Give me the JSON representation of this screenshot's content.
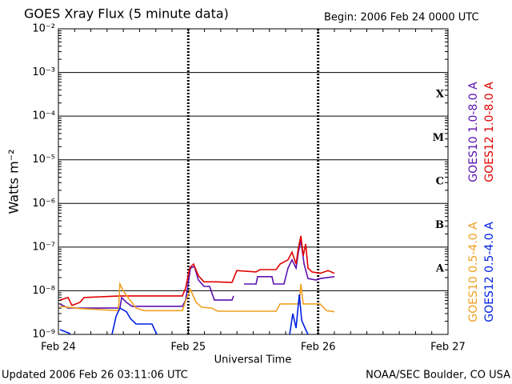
{
  "chart_data": {
    "type": "line",
    "title": "GOES Xray Flux (5 minute data)",
    "begin": "Begin:  2006 Feb 24 0000 UTC",
    "ylabel": "Watts m⁻²",
    "xlabel": "Universal Time",
    "updated": "Updated 2006 Feb 26 03:11:06 UTC",
    "source": "NOAA/SEC Boulder, CO USA",
    "log_scale": true,
    "grid": true,
    "ylim": [
      1e-09,
      0.01
    ],
    "yticks": [
      {
        "value": 1e-09,
        "label": "10⁻⁹"
      },
      {
        "value": 1e-08,
        "label": "10⁻⁸"
      },
      {
        "value": 1e-07,
        "label": "10⁻⁷"
      },
      {
        "value": 1e-06,
        "label": "10⁻⁶"
      },
      {
        "value": 1e-05,
        "label": "10⁻⁵"
      },
      {
        "value": 0.0001,
        "label": "10⁻⁴"
      },
      {
        "value": 0.001,
        "label": "10⁻³"
      },
      {
        "value": 0.01,
        "label": "10⁻²"
      }
    ],
    "xlim": [
      0,
      3
    ],
    "xticks": [
      {
        "value": 0,
        "label": "Feb 24"
      },
      {
        "value": 1,
        "label": "Feb 25"
      },
      {
        "value": 2,
        "label": "Feb 26"
      },
      {
        "value": 3,
        "label": "Feb 27"
      }
    ],
    "flare_classes": [
      "A",
      "B",
      "C",
      "M",
      "X"
    ],
    "series": [
      {
        "name": "GOES10 1.0-8.0 A",
        "color": "#5a10b0",
        "x": [
          0.012,
          0.074,
          0.474,
          0.487,
          0.524,
          0.567,
          0.955,
          0.98,
          1.017,
          1.047,
          1.078,
          1.121,
          1.164,
          1.201,
          1.337,
          1.349,
          null,
          1.429,
          1.522,
          1.534,
          1.645,
          1.657,
          1.737,
          1.768,
          1.799,
          1.83,
          1.848,
          1.867,
          1.892,
          1.922,
          1.984,
          2.015,
          2.126
        ],
        "values": [
          5e-09,
          4e-09,
          4e-09,
          7e-09,
          5.4e-09,
          4.4e-09,
          4.4e-09,
          6.1e-09,
          3.3e-08,
          3.6e-08,
          1.76e-08,
          1.26e-08,
          1.26e-08,
          6.1e-09,
          6.1e-09,
          7.6e-09,
          null,
          1.43e-08,
          1.43e-08,
          2.1e-08,
          2.1e-08,
          1.43e-08,
          1.43e-08,
          3.3e-08,
          5.1e-08,
          3.3e-08,
          7.7e-08,
          1.45e-07,
          4.1e-08,
          1.9e-08,
          1.76e-08,
          1.9e-08,
          2.1e-08
        ]
      },
      {
        "name": "GOES12 1.0-8.0 A",
        "color": "#e00000",
        "x": [
          0.012,
          0.074,
          0.105,
          0.166,
          0.197,
          0.474,
          0.955,
          0.98,
          1.01,
          1.041,
          1.078,
          1.121,
          1.214,
          1.337,
          1.374,
          1.522,
          1.553,
          1.676,
          1.707,
          1.768,
          1.799,
          1.83,
          1.848,
          1.867,
          1.885,
          1.904,
          1.922,
          1.953,
          2.015,
          2.076,
          2.126
        ],
        "values": [
          6.1e-09,
          7e-09,
          4.6e-09,
          5.4e-09,
          7e-09,
          7.6e-09,
          7.6e-09,
          1.16e-08,
          3.3e-08,
          4.1e-08,
          2.2e-08,
          1.6e-08,
          1.6e-08,
          1.55e-08,
          2.9e-08,
          2.7e-08,
          3.05e-08,
          3.05e-08,
          4.1e-08,
          5.1e-08,
          7.7e-08,
          4.1e-08,
          9.5e-08,
          1.8e-07,
          6.3e-08,
          1.18e-07,
          3.3e-08,
          2.7e-08,
          2.5e-08,
          2.9e-08,
          2.5e-08
        ]
      },
      {
        "name": "GOES10 0.5-4.0 A",
        "color": "#f0a020",
        "x": [
          0.012,
          0.166,
          0.462,
          0.474,
          0.505,
          0.536,
          0.598,
          0.659,
          0.955,
          0.98,
          1.017,
          1.06,
          1.103,
          1.183,
          1.226,
          1.676,
          1.707,
          1.855,
          1.867,
          1.885,
          2.015,
          2.064,
          2.126
        ],
        "values": [
          4.4e-09,
          3.9e-09,
          3.5e-09,
          1.43e-08,
          9.4e-09,
          7e-09,
          4e-09,
          3.5e-09,
          3.5e-09,
          5.9e-09,
          1.06e-08,
          5.4e-09,
          4.2e-09,
          4e-09,
          3.4e-09,
          3.4e-09,
          5e-09,
          5e-09,
          1.43e-08,
          5e-09,
          5e-09,
          3.5e-09,
          3.3e-09
        ]
      },
      {
        "name": "GOES12 0.5-4.0 A",
        "color": "#0020e0",
        "x": [
          0.012,
          0.092,
          null,
          0.413,
          0.444,
          0.474,
          0.524,
          0.555,
          0.598,
          0.721,
          0.758,
          null,
          1.781,
          1.805,
          1.83,
          1.855,
          1.873,
          1.904,
          1.922
        ],
        "values": [
          1.29e-09,
          1.04e-09,
          null,
          1e-09,
          2.6e-09,
          4e-09,
          3.3e-09,
          2.3e-09,
          1.73e-09,
          1.73e-09,
          1e-09,
          null,
          1e-09,
          3e-09,
          1.4e-09,
          8.2e-09,
          2.1e-09,
          1.29e-09,
          1e-09
        ]
      }
    ]
  }
}
